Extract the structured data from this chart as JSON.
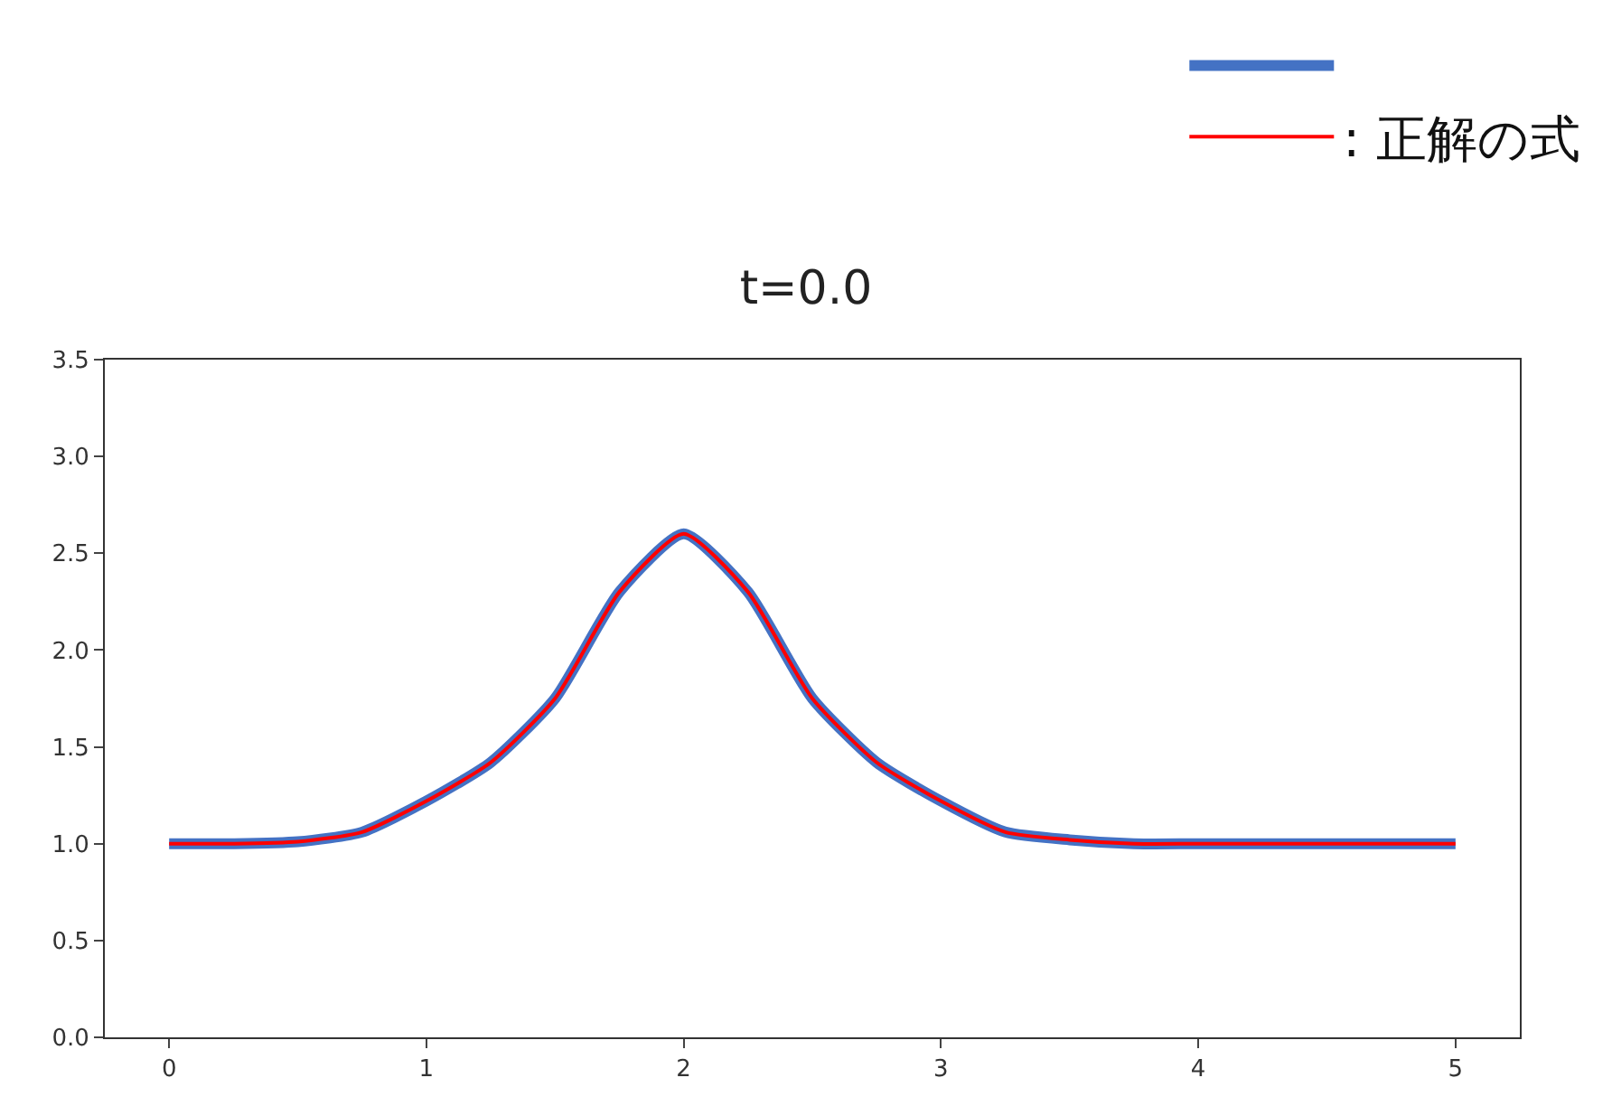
{
  "chart_data": {
    "type": "line",
    "title": "t=0.0",
    "x": [
      0,
      0.25,
      0.5,
      0.75,
      1.0,
      1.25,
      1.5,
      1.75,
      2.0,
      2.25,
      2.5,
      2.75,
      3.0,
      3.25,
      3.5,
      3.75,
      4.0,
      4.5,
      5.0
    ],
    "series": [
      {
        "color": "#4472c4",
        "values": [
          1.0,
          1.0,
          1.01,
          1.06,
          1.22,
          1.42,
          1.75,
          2.3,
          2.6,
          2.3,
          1.75,
          1.42,
          1.22,
          1.06,
          1.02,
          1.0,
          1.0,
          1.0,
          1.0
        ]
      },
      {
        "name": ": 正解の式",
        "color": "#ff0000",
        "values": [
          1.0,
          1.0,
          1.01,
          1.06,
          1.22,
          1.42,
          1.75,
          2.3,
          2.6,
          2.3,
          1.75,
          1.42,
          1.22,
          1.06,
          1.02,
          1.0,
          1.0,
          1.0,
          1.0
        ]
      }
    ],
    "xlim": [
      -0.25,
      5.25
    ],
    "xticks": [
      0,
      1,
      2,
      3,
      4,
      5
    ],
    "ylim": [
      0,
      3.5
    ],
    "yticks": [
      {
        "value": 0,
        "label": "0.0"
      },
      0.5,
      {
        "value": 1,
        "label": "1.0"
      },
      1.5,
      {
        "value": 2,
        "label": "2.0"
      },
      2.5,
      {
        "value": 3,
        "label": "3.0"
      },
      3.5
    ],
    "legend": "top right",
    "marker": "none",
    "line_style": "solid"
  }
}
